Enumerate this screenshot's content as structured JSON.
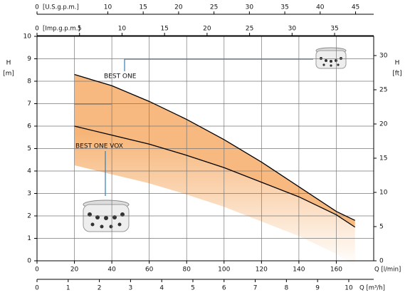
{
  "chart_data": {
    "type": "line",
    "x": [
      20,
      40,
      60,
      80,
      100,
      120,
      140,
      160,
      170
    ],
    "series": [
      {
        "name": "BEST ONE",
        "color": "#000000",
        "values": [
          8.3,
          7.8,
          7.1,
          6.3,
          5.4,
          4.4,
          3.3,
          2.2,
          1.8
        ]
      },
      {
        "name": "BEST ONE VOX",
        "color": "#000000",
        "values": [
          6.0,
          5.6,
          5.2,
          4.7,
          4.15,
          3.5,
          2.85,
          2.05,
          1.5
        ]
      }
    ],
    "fill_color": "#f5a860",
    "xlim": [
      0,
      180
    ],
    "xticks": [
      0,
      20,
      40,
      60,
      80,
      100,
      120,
      140,
      160
    ],
    "xlabel": "Q [l/min]",
    "ylim": [
      0,
      10
    ],
    "yticks": [
      0,
      1,
      2,
      3,
      4,
      5,
      6,
      7,
      8,
      9,
      10
    ],
    "ylabel": "H",
    "yunit": "[m]",
    "y2lim": [
      0,
      32.81
    ],
    "y2ticks": [
      0,
      5,
      10,
      15,
      20,
      25,
      30
    ],
    "y2label": "H",
    "y2unit": "[ft]",
    "grid": true,
    "top_axes": [
      {
        "label": "[U.S.g.p.m.]",
        "lim": [
          0,
          47.56
        ],
        "ticks": [
          0,
          10,
          15,
          20,
          25,
          30,
          35,
          40,
          45
        ]
      },
      {
        "label": "[Imp.g.p.m.]",
        "lim": [
          0,
          39.6
        ],
        "ticks": [
          0,
          5,
          10,
          15,
          20,
          25,
          30,
          35
        ]
      }
    ],
    "bottom_axis": {
      "label": "Q [m³/h]",
      "lim": [
        0,
        10.8
      ],
      "ticks": [
        0,
        1,
        2,
        3,
        4,
        5,
        6,
        7,
        8,
        9,
        10
      ]
    }
  }
}
